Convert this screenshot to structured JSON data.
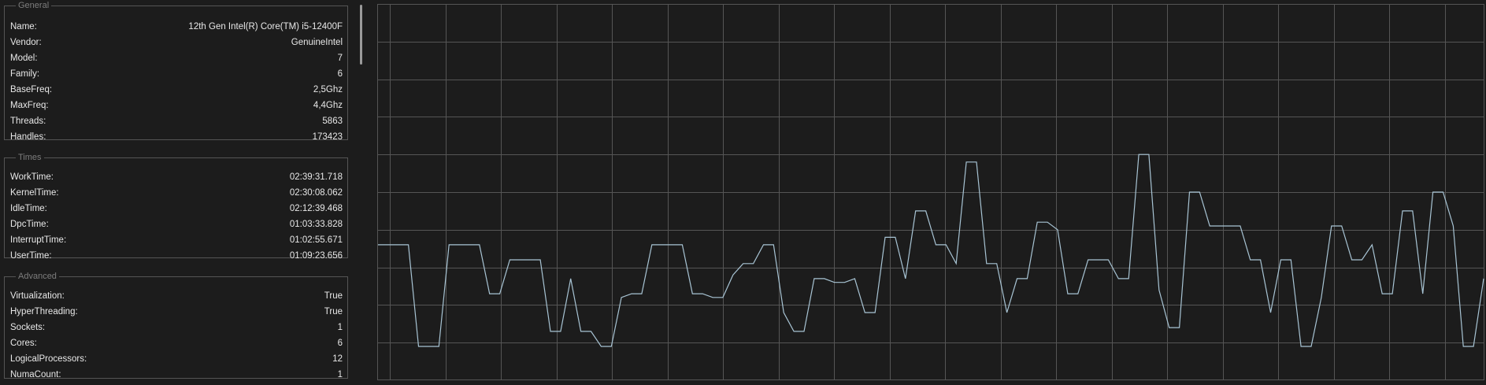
{
  "general": {
    "legend": "General",
    "rows": [
      {
        "label": "Name:",
        "value": "12th Gen Intel(R) Core(TM) i5-12400F"
      },
      {
        "label": "Vendor:",
        "value": "GenuineIntel"
      },
      {
        "label": "Model:",
        "value": "7"
      },
      {
        "label": "Family:",
        "value": "6"
      },
      {
        "label": "BaseFreq:",
        "value": "2,5Ghz"
      },
      {
        "label": "MaxFreq:",
        "value": "4,4Ghz"
      },
      {
        "label": "Threads:",
        "value": "5863"
      },
      {
        "label": "Handles:",
        "value": "173423"
      }
    ]
  },
  "times": {
    "legend": "Times",
    "rows": [
      {
        "label": "WorkTime:",
        "value": "02:39:31.718"
      },
      {
        "label": "KernelTime:",
        "value": "02:30:08.062"
      },
      {
        "label": "IdleTime:",
        "value": "02:12:39.468"
      },
      {
        "label": "DpcTime:",
        "value": "01:03:33.828"
      },
      {
        "label": "InterruptTime:",
        "value": "01:02:55.671"
      },
      {
        "label": "UserTime:",
        "value": "01:09:23.656"
      }
    ]
  },
  "advanced": {
    "legend": "Advanced",
    "rows": [
      {
        "label": "Virtualization:",
        "value": "True"
      },
      {
        "label": "HyperThreading:",
        "value": "True"
      },
      {
        "label": "Sockets:",
        "value": "1"
      },
      {
        "label": "Cores:",
        "value": "6"
      },
      {
        "label": "LogicalProcessors:",
        "value": "12"
      },
      {
        "label": "NumaCount:",
        "value": "1"
      }
    ]
  },
  "colors": {
    "background": "#1c1c1c",
    "grid": "#555555",
    "line": "#a8c4d4",
    "border": "#555555"
  },
  "chart_data": {
    "type": "line",
    "ylim": [
      0,
      100
    ],
    "grid": true,
    "values": [
      36,
      36,
      36,
      36,
      9,
      9,
      9,
      36,
      36,
      36,
      36,
      23,
      23,
      32,
      32,
      32,
      32,
      13,
      13,
      27,
      13,
      13,
      9,
      9,
      22,
      23,
      23,
      36,
      36,
      36,
      36,
      23,
      23,
      22,
      22,
      28,
      31,
      31,
      36,
      36,
      18,
      13,
      13,
      27,
      27,
      26,
      26,
      27,
      18,
      18,
      38,
      38,
      27,
      45,
      45,
      36,
      36,
      31,
      58,
      58,
      31,
      31,
      18,
      27,
      27,
      42,
      42,
      40,
      23,
      23,
      32,
      32,
      32,
      27,
      27,
      60,
      60,
      24,
      14,
      14,
      50,
      50,
      41,
      41,
      41,
      41,
      32,
      32,
      18,
      32,
      32,
      9,
      9,
      22,
      41,
      41,
      32,
      32,
      36,
      23,
      23,
      45,
      45,
      23,
      50,
      50,
      41,
      9,
      9,
      27
    ]
  }
}
